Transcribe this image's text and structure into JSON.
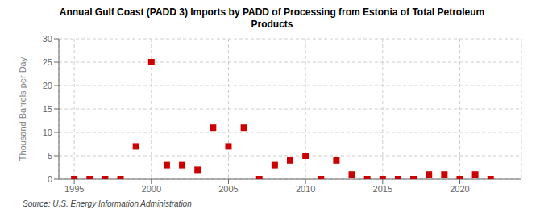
{
  "chart_data": {
    "type": "scatter",
    "title": "Annual Gulf Coast (PADD 3) Imports by PADD of Processing from Estonia of Total Petroleum\nProducts",
    "ylabel": "Thousand Barrels per Day",
    "annotations": [
      "Source: U.S. Energy Information Administration"
    ],
    "x": [
      1995,
      1996,
      1997,
      1998,
      1999,
      2000,
      2001,
      2002,
      2003,
      2004,
      2005,
      2006,
      2007,
      2008,
      2009,
      2010,
      2011,
      2012,
      2013,
      2014,
      2015,
      2016,
      2017,
      2018,
      2019,
      2020,
      2021,
      2022
    ],
    "values": [
      0,
      0,
      0,
      0,
      7,
      25,
      3,
      3,
      2,
      11,
      7,
      11,
      0,
      3,
      4,
      5,
      0,
      4,
      1,
      0,
      0,
      0,
      0,
      1,
      1,
      0,
      1,
      0
    ],
    "color": "#cc0000",
    "marker": "square",
    "xlim": [
      1994,
      2024
    ],
    "xticks": [
      1995,
      2000,
      2005,
      2010,
      2015,
      2020
    ],
    "ylim": [
      0,
      30
    ],
    "yticks": [
      0,
      5,
      10,
      15,
      20,
      25,
      30
    ],
    "grid": true
  }
}
